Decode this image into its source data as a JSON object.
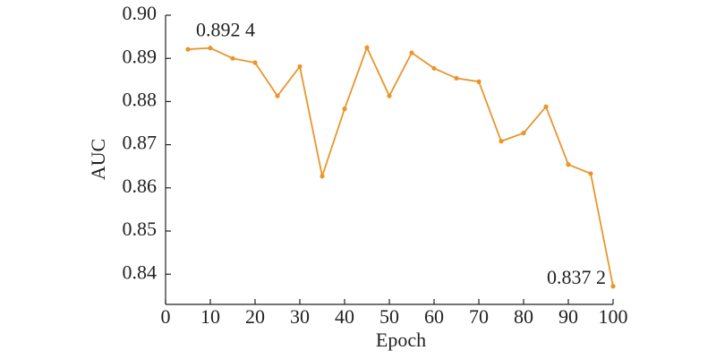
{
  "chart_data": {
    "type": "line",
    "x_label": "Epoch",
    "y_label": "AUC",
    "x": [
      5,
      10,
      15,
      20,
      25,
      30,
      35,
      40,
      45,
      50,
      55,
      60,
      65,
      70,
      75,
      80,
      85,
      90,
      95,
      100
    ],
    "series": [
      {
        "name": "AUC",
        "color": "#e8962b",
        "values": [
          0.8921,
          0.8924,
          0.89,
          0.889,
          0.8813,
          0.8881,
          0.8627,
          0.8783,
          0.8925,
          0.8813,
          0.8913,
          0.8877,
          0.8854,
          0.8846,
          0.8708,
          0.8727,
          0.8788,
          0.8654,
          0.8633,
          0.8372
        ],
        "value_labels": [
          null,
          "0.892 4",
          null,
          null,
          null,
          null,
          null,
          null,
          null,
          null,
          null,
          null,
          null,
          null,
          null,
          null,
          null,
          null,
          null,
          "0.837 2"
        ]
      }
    ],
    "xlim": [
      0,
      100
    ],
    "xticks": [
      0,
      10,
      20,
      30,
      40,
      50,
      60,
      70,
      80,
      90,
      100
    ],
    "ylim": [
      0.833,
      0.9
    ],
    "yticks": [
      0.84,
      0.85,
      0.86,
      0.87,
      0.88,
      0.89,
      {
        "value": 0.9,
        "label": "0.90"
      }
    ]
  }
}
